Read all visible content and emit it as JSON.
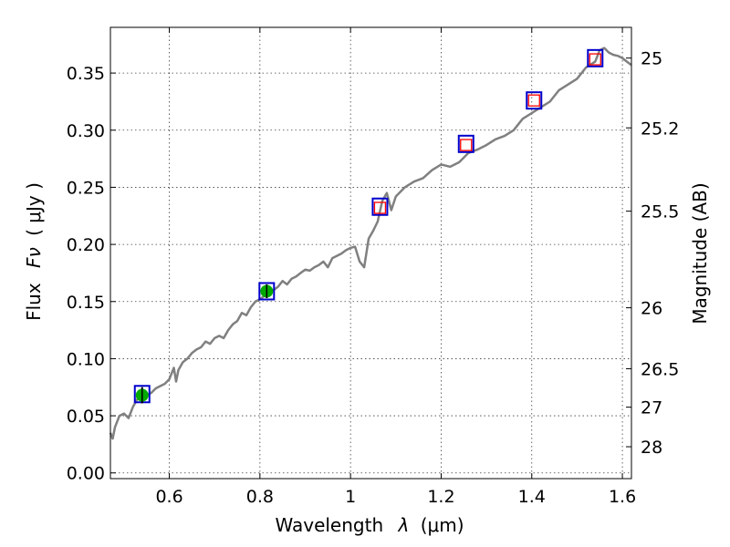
{
  "chart_data": {
    "type": "scatter",
    "xlabel_main": "Wavelength",
    "xlabel_symbol": "λ",
    "xlabel_unit": "(μm)",
    "ylabel_main": "Flux",
    "ylabel_symbol": "Fν",
    "ylabel_unit": "( μJy )",
    "ylabel_right": "Magnitude (AB)",
    "xlim": [
      0.47,
      1.62
    ],
    "ylim": [
      -0.005,
      0.39
    ],
    "grid": true,
    "x_ticks": [
      {
        "value": 0.6,
        "label": "0.6"
      },
      {
        "value": 0.8,
        "label": "0.8"
      },
      {
        "value": 1.0,
        "label": "1"
      },
      {
        "value": 1.2,
        "label": "1.2"
      },
      {
        "value": 1.4,
        "label": "1.4"
      },
      {
        "value": 1.6,
        "label": "1.6"
      }
    ],
    "y_ticks": [
      {
        "value": 0.0,
        "label": "0.00"
      },
      {
        "value": 0.05,
        "label": "0.05"
      },
      {
        "value": 0.1,
        "label": "0.10"
      },
      {
        "value": 0.15,
        "label": "0.15"
      },
      {
        "value": 0.2,
        "label": "0.20"
      },
      {
        "value": 0.25,
        "label": "0.25"
      },
      {
        "value": 0.3,
        "label": "0.30"
      },
      {
        "value": 0.35,
        "label": "0.35"
      }
    ],
    "right_ticks": [
      {
        "value": 25.0,
        "label": "25"
      },
      {
        "value": 25.2,
        "label": "25.2"
      },
      {
        "value": 25.5,
        "label": "25.5"
      },
      {
        "value": 26.0,
        "label": "26"
      },
      {
        "value": 26.5,
        "label": "26.5"
      },
      {
        "value": 27.0,
        "label": "27"
      },
      {
        "value": 28.0,
        "label": "28"
      }
    ],
    "model_spectrum": {
      "color": "#808080",
      "x": [
        0.47,
        0.475,
        0.48,
        0.49,
        0.5,
        0.51,
        0.52,
        0.53,
        0.54,
        0.55,
        0.56,
        0.57,
        0.58,
        0.59,
        0.6,
        0.61,
        0.615,
        0.62,
        0.63,
        0.64,
        0.65,
        0.66,
        0.67,
        0.68,
        0.69,
        0.7,
        0.71,
        0.72,
        0.73,
        0.74,
        0.75,
        0.76,
        0.77,
        0.78,
        0.79,
        0.8,
        0.81,
        0.82,
        0.83,
        0.84,
        0.85,
        0.86,
        0.87,
        0.88,
        0.89,
        0.9,
        0.91,
        0.92,
        0.93,
        0.94,
        0.95,
        0.96,
        0.97,
        0.98,
        0.99,
        1.0,
        1.01,
        1.02,
        1.03,
        1.04,
        1.05,
        1.06,
        1.07,
        1.08,
        1.09,
        1.1,
        1.12,
        1.14,
        1.16,
        1.18,
        1.2,
        1.22,
        1.24,
        1.26,
        1.28,
        1.3,
        1.32,
        1.34,
        1.36,
        1.38,
        1.4,
        1.42,
        1.44,
        1.46,
        1.48,
        1.5,
        1.52,
        1.54,
        1.55,
        1.56,
        1.57,
        1.58,
        1.59,
        1.6,
        1.61,
        1.62
      ],
      "y": [
        0.035,
        0.03,
        0.04,
        0.05,
        0.052,
        0.048,
        0.058,
        0.065,
        0.067,
        0.068,
        0.07,
        0.074,
        0.076,
        0.078,
        0.082,
        0.092,
        0.08,
        0.09,
        0.097,
        0.1,
        0.105,
        0.108,
        0.11,
        0.115,
        0.113,
        0.118,
        0.12,
        0.118,
        0.125,
        0.13,
        0.133,
        0.14,
        0.138,
        0.145,
        0.15,
        0.152,
        0.155,
        0.158,
        0.16,
        0.163,
        0.168,
        0.165,
        0.17,
        0.172,
        0.175,
        0.178,
        0.177,
        0.18,
        0.182,
        0.185,
        0.18,
        0.188,
        0.19,
        0.192,
        0.195,
        0.197,
        0.198,
        0.185,
        0.18,
        0.205,
        0.212,
        0.22,
        0.238,
        0.245,
        0.23,
        0.242,
        0.25,
        0.255,
        0.258,
        0.265,
        0.27,
        0.268,
        0.272,
        0.28,
        0.283,
        0.287,
        0.292,
        0.295,
        0.3,
        0.31,
        0.315,
        0.32,
        0.325,
        0.335,
        0.34,
        0.345,
        0.355,
        0.36,
        0.37,
        0.372,
        0.368,
        0.366,
        0.365,
        0.363,
        0.36,
        0.357
      ]
    },
    "model_points": {
      "marker": "square",
      "edge_color": "#0000cc",
      "x": [
        0.54,
        0.815,
        1.065,
        1.255,
        1.405,
        1.54
      ],
      "y": [
        0.069,
        0.159,
        0.233,
        0.288,
        0.326,
        0.363
      ]
    },
    "observed_upper_limits": {
      "marker": "square",
      "edge_color": "#ff0000",
      "x": [
        1.065,
        1.255,
        1.405,
        1.54
      ],
      "y": [
        0.232,
        0.287,
        0.326,
        0.362
      ]
    },
    "observed_detections": {
      "marker": "circle",
      "color": "#00aa00",
      "x": [
        0.54,
        0.815
      ],
      "y": [
        0.068,
        0.159
      ],
      "yerr": [
        0.007,
        0.006
      ]
    }
  }
}
